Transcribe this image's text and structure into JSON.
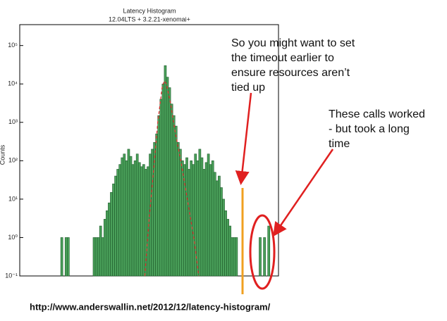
{
  "chart_data": {
    "type": "histogram",
    "title": "Latency Histogram",
    "subtitle": "12.04LTS + 3.2.21-xenomai+",
    "y_label": "Counts",
    "log_y": true,
    "color": "#4aa05a",
    "bins": [
      0,
      1,
      2,
      3,
      4,
      5,
      6,
      7,
      8,
      9,
      10,
      11,
      12,
      13,
      14,
      15,
      16,
      17,
      18,
      19,
      20,
      21,
      22,
      23,
      24,
      25,
      26,
      27,
      28,
      29,
      30,
      31,
      32,
      33,
      34,
      35,
      36,
      37,
      38,
      39,
      40,
      41,
      42,
      43,
      44,
      45,
      46,
      47,
      48,
      49,
      50,
      51,
      52,
      53,
      54,
      55,
      56,
      57,
      58,
      59,
      60,
      61,
      62,
      63,
      64,
      65,
      66,
      67,
      68,
      69,
      70,
      71,
      72,
      73,
      74,
      75,
      76,
      77,
      78,
      79,
      80,
      81,
      82,
      83,
      84,
      85,
      86,
      87,
      88,
      89,
      90,
      91,
      92,
      93,
      94,
      95,
      96,
      97,
      98,
      99,
      100,
      101,
      102,
      103,
      104,
      105,
      106,
      107,
      108,
      109,
      110,
      111,
      112,
      113,
      114,
      115,
      116,
      117,
      118,
      119,
      120
    ],
    "values": [
      0,
      0,
      0,
      0,
      0,
      0,
      0,
      0,
      0,
      0,
      0,
      0,
      0,
      0,
      0,
      0,
      0,
      0,
      0,
      1,
      0,
      1,
      1,
      0,
      0,
      0,
      0,
      0,
      0,
      0,
      0,
      0,
      0,
      0,
      1,
      1,
      1,
      2,
      1,
      3,
      5,
      8,
      15,
      25,
      40,
      60,
      80,
      120,
      150,
      100,
      200,
      130,
      80,
      100,
      150,
      90,
      70,
      80,
      60,
      70,
      150,
      200,
      300,
      500,
      1500,
      4000,
      10000,
      30000,
      15000,
      8000,
      3000,
      1500,
      800,
      300,
      200,
      100,
      80,
      120,
      60,
      100,
      80,
      150,
      100,
      200,
      120,
      60,
      90,
      150,
      80,
      100,
      50,
      30,
      40,
      20,
      10,
      5,
      3,
      2,
      1,
      1,
      1,
      0,
      0,
      0,
      0,
      0,
      0,
      0,
      0,
      0,
      0,
      1,
      0,
      1,
      0,
      2,
      0,
      0,
      0,
      0
    ],
    "fit": {
      "color": "#e03030",
      "x": [
        58,
        60,
        62,
        64,
        66,
        67,
        68,
        70,
        72,
        75,
        78,
        81,
        83
      ],
      "values": [
        0.1,
        3,
        50,
        1000,
        8000,
        12000,
        10000,
        3000,
        600,
        80,
        8,
        0.8,
        0.1
      ]
    },
    "xlim": [
      0,
      120
    ],
    "ylim": [
      0.1,
      350000
    ],
    "yticks": [
      {
        "value": 0.1,
        "label": "10⁻¹"
      },
      {
        "value": 1,
        "label": "10⁰"
      },
      {
        "value": 10,
        "label": "10¹"
      },
      {
        "value": 100,
        "label": "10²"
      },
      {
        "value": 1000,
        "label": "10³"
      },
      {
        "value": 10000,
        "label": "10⁴"
      },
      {
        "value": 100000,
        "label": "10⁵"
      }
    ],
    "annotations": [
      "So you might want to set",
      "the timeout earlier to",
      "ensure resources aren’t",
      "tied up",
      "These calls worked",
      "- but took a long",
      "time"
    ],
    "source": "http://www.anderswallin.net/2012/12/latency-histogram/"
  }
}
